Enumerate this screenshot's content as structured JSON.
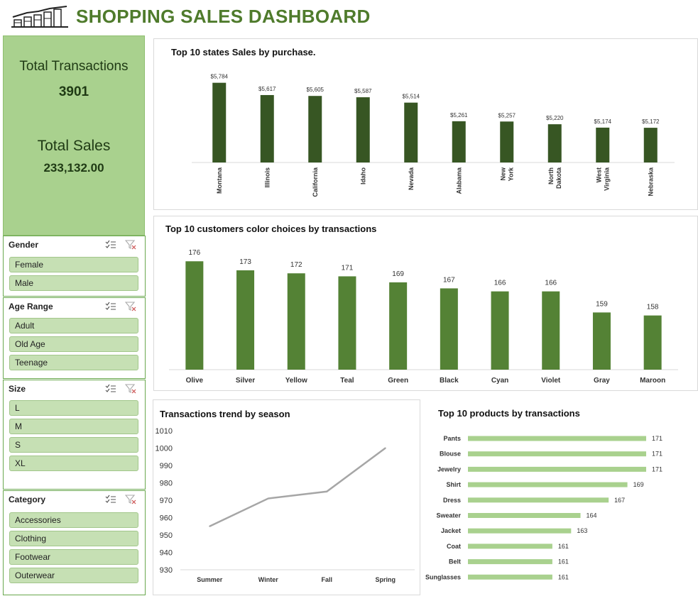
{
  "header": {
    "title": "SHOPPING SALES  DASHBOARD",
    "logo_icon": "sales-growth-chart-icon"
  },
  "kpi": {
    "total_transactions_label": "Total Transactions",
    "total_transactions_value": "3901",
    "total_sales_label": "Total Sales",
    "total_sales_value": "233,132.00"
  },
  "slicers": [
    {
      "title": "Gender",
      "items": [
        "Female",
        "Male"
      ]
    },
    {
      "title": "Age Range",
      "items": [
        "Adult",
        "Old Age",
        "Teenage"
      ]
    },
    {
      "title": "Size",
      "items": [
        "L",
        "M",
        "S",
        "XL"
      ]
    },
    {
      "title": "Category",
      "items": [
        "Accessories",
        "Clothing",
        "Footwear",
        "Outerwear"
      ]
    }
  ],
  "colors": {
    "accent": "#4f7b2c",
    "dark_bar": "#375623",
    "mid_bar": "#548235",
    "light_bar": "#a9d18e",
    "line": "#a6a6a6"
  },
  "chart_data": [
    {
      "id": "states",
      "type": "bar",
      "title": "Top 10 states Sales by purchase.",
      "categories": [
        "Montana",
        "Illinois",
        "California",
        "Idaho",
        "Nevada",
        "Alabama",
        "New York",
        "North Dakota",
        "West Virginia",
        "Nebraska"
      ],
      "values": [
        5784,
        5617,
        5605,
        5587,
        5514,
        5261,
        5257,
        5220,
        5174,
        5172
      ],
      "data_labels": [
        "$5,784",
        "$5,617",
        "$5,605",
        "$5,587",
        "$5,514",
        "$5,261",
        "$5,257",
        "$5,220",
        "$5,174",
        "$5,172"
      ],
      "ylim": [
        4700,
        5800
      ]
    },
    {
      "id": "colors",
      "type": "bar",
      "title": "Top 10 customers color choices by  transactions",
      "categories": [
        "Olive",
        "Silver",
        "Yellow",
        "Teal",
        "Green",
        "Black",
        "Cyan",
        "Violet",
        "Gray",
        "Maroon"
      ],
      "values": [
        176,
        173,
        172,
        171,
        169,
        167,
        166,
        166,
        159,
        158
      ],
      "ylim": [
        140,
        177
      ]
    },
    {
      "id": "season",
      "type": "line",
      "title": "Transactions trend by season",
      "categories": [
        "Summer",
        "Winter",
        "Fall",
        "Spring"
      ],
      "values": [
        955,
        971,
        975,
        1000
      ],
      "ylim": [
        930,
        1010
      ],
      "yticks": [
        930,
        940,
        950,
        960,
        970,
        980,
        990,
        1000,
        1010
      ]
    },
    {
      "id": "products",
      "type": "bar",
      "orientation": "horizontal",
      "title": "Top 10 products by transactions",
      "categories": [
        "Pants",
        "Blouse",
        "Jewelry",
        "Shirt",
        "Dress",
        "Sweater",
        "Jacket",
        "Coat",
        "Belt",
        "Sunglasses"
      ],
      "values": [
        171,
        171,
        171,
        169,
        167,
        164,
        163,
        161,
        161,
        161
      ],
      "xlim": [
        152,
        171
      ]
    }
  ]
}
